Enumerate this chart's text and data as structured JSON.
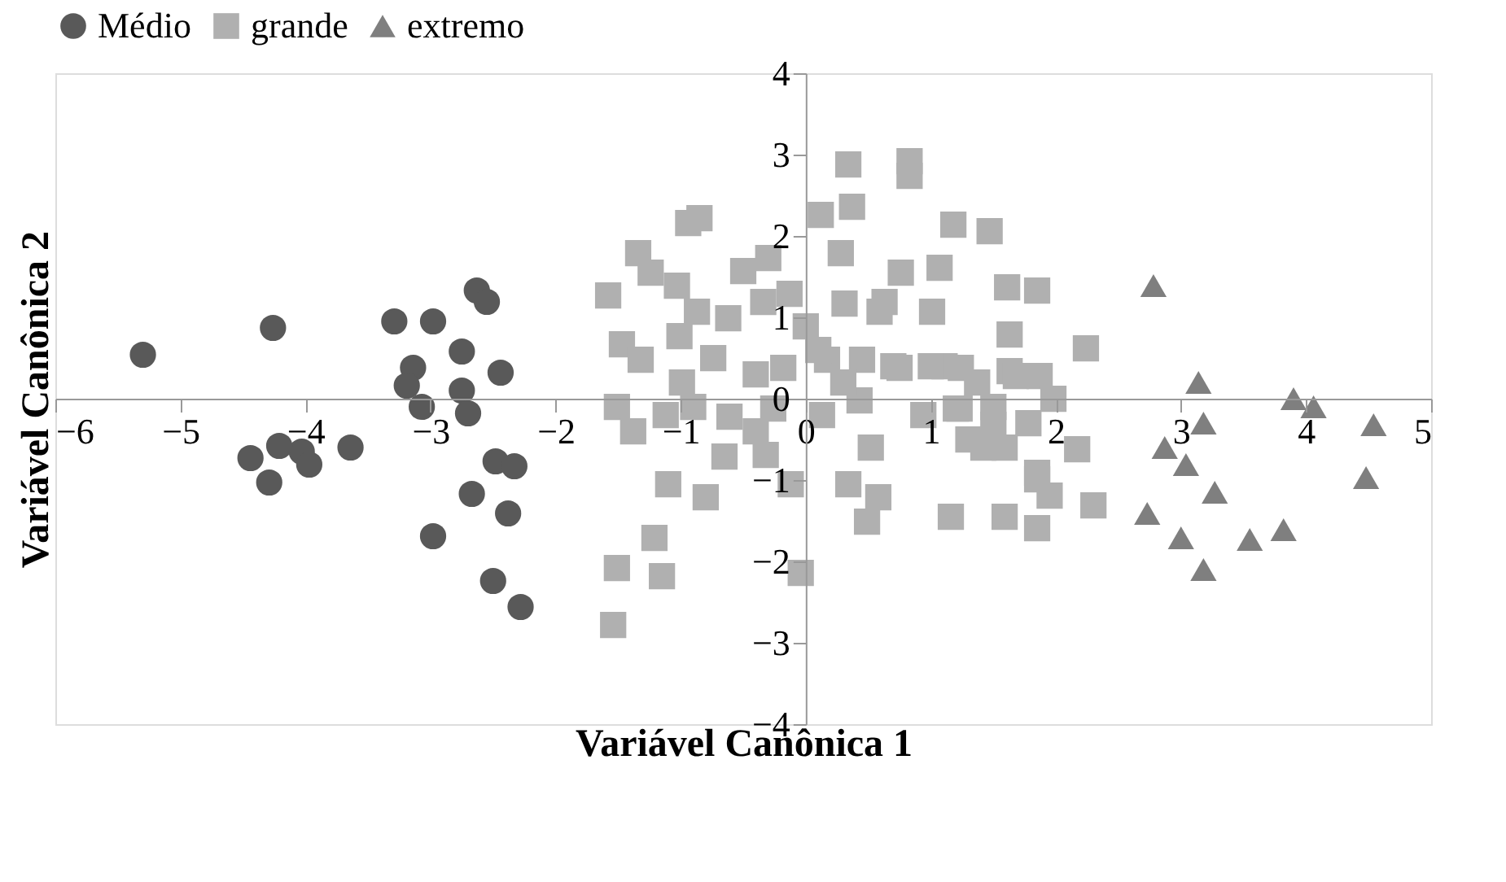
{
  "chart_data": {
    "type": "scatter",
    "xlabel": "Variável Canônica 1",
    "ylabel": "Variável Canônica 2",
    "xlim": [
      -6,
      5
    ],
    "ylim": [
      -4,
      4
    ],
    "xticks": [
      -6,
      -5,
      -4,
      -3,
      -2,
      -1,
      0,
      1,
      2,
      3,
      4,
      5
    ],
    "yticks": [
      -4,
      -3,
      -2,
      -1,
      0,
      1,
      2,
      3,
      4
    ],
    "grid": false,
    "legend": "top",
    "series": [
      {
        "name": "Médio",
        "color": "#595959",
        "marker": "circle",
        "x": [
          -5.3,
          -4.26,
          -3.29,
          -2.98,
          -2.63,
          -2.55,
          -2.75,
          -2.44,
          -3.14,
          -3.19,
          -3.07,
          -2.75,
          -2.7,
          -4.03,
          -4.44,
          -4.21,
          -4.29,
          -3.97,
          -3.64,
          -2.48,
          -2.33,
          -2.67,
          -2.38,
          -2.98,
          -2.5,
          -2.28
        ],
        "values": [
          0.54,
          0.87,
          0.95,
          0.95,
          1.33,
          1.19,
          0.58,
          0.32,
          0.38,
          0.16,
          -0.1,
          0.1,
          -0.18,
          -0.65,
          -0.73,
          -0.58,
          -1.03,
          -0.81,
          -0.6,
          -0.77,
          -0.83,
          -1.17,
          -1.41,
          -1.69,
          -2.24,
          -2.56
        ]
      },
      {
        "name": "grande",
        "color": "#b0b0b0",
        "marker": "square",
        "x": [
          0.34,
          0.83,
          0.83,
          0.12,
          0.37,
          -0.94,
          -0.85,
          1.18,
          1.47,
          0.28,
          -1.34,
          -0.3,
          -0.5,
          -1.24,
          -1.58,
          -1.03,
          0.76,
          1.07,
          1.61,
          1.85,
          -0.13,
          -0.34,
          0.31,
          0.63,
          1.01,
          -0.87,
          -0.62,
          0.0,
          0.59,
          -1.01,
          -1.47,
          -1.32,
          -0.74,
          -0.18,
          0.17,
          0.45,
          0.75,
          1.24,
          1.63,
          1.63,
          1.87,
          -0.99,
          -1.51,
          -1.12,
          -1.38,
          -0.61,
          -0.26,
          0.13,
          0.43,
          0.94,
          1.23,
          1.5,
          1.78,
          1.42,
          0.52,
          0.34,
          0.58,
          0.49,
          -0.12,
          -0.32,
          -0.65,
          -1.1,
          -0.8,
          1.16,
          1.59,
          1.85,
          1.85,
          -1.21,
          -1.51,
          -1.15,
          -0.04,
          -1.54,
          2.24,
          1.98,
          2.17,
          1.95,
          2.3,
          1.85,
          1.59,
          1.11,
          1.37,
          1.68,
          1.2,
          0.3,
          0.1,
          -0.4,
          1.3,
          1.5,
          0.7,
          1.0,
          -0.9,
          -0.4
        ],
        "values": [
          2.88,
          2.92,
          2.74,
          2.26,
          2.36,
          2.16,
          2.22,
          2.14,
          2.06,
          1.79,
          1.79,
          1.73,
          1.57,
          1.55,
          1.27,
          1.39,
          1.55,
          1.61,
          1.37,
          1.33,
          1.29,
          1.19,
          1.17,
          1.19,
          1.07,
          1.07,
          0.99,
          0.89,
          1.07,
          0.77,
          0.67,
          0.48,
          0.5,
          0.38,
          0.48,
          0.48,
          0.38,
          0.38,
          0.79,
          0.34,
          0.28,
          0.2,
          -0.1,
          -0.2,
          -0.4,
          -0.22,
          -0.12,
          -0.2,
          -0.02,
          -0.2,
          -0.12,
          -0.32,
          -0.3,
          -0.6,
          -0.6,
          -1.05,
          -1.21,
          -1.51,
          -1.05,
          -0.69,
          -0.71,
          -1.05,
          -1.21,
          -1.45,
          -1.45,
          -1.59,
          -0.99,
          -1.71,
          -2.08,
          -2.18,
          -2.14,
          -2.78,
          0.62,
          0.0,
          -0.62,
          -1.19,
          -1.31,
          -0.91,
          -0.6,
          0.4,
          0.2,
          0.28,
          -0.12,
          0.2,
          0.6,
          0.3,
          -0.5,
          -0.1,
          0.4,
          0.4,
          -0.1,
          -0.4
        ]
      },
      {
        "name": "extremo",
        "color": "#7f7f7f",
        "marker": "triangle",
        "x": [
          2.78,
          3.14,
          3.18,
          3.9,
          4.06,
          4.54,
          4.48,
          2.87,
          3.04,
          3.27,
          2.73,
          3.0,
          3.55,
          3.82,
          3.18
        ],
        "values": [
          1.39,
          0.2,
          -0.3,
          0.0,
          -0.1,
          -0.32,
          -0.97,
          -0.6,
          -0.81,
          -1.15,
          -1.41,
          -1.71,
          -1.73,
          -1.61,
          -2.1
        ]
      }
    ]
  }
}
